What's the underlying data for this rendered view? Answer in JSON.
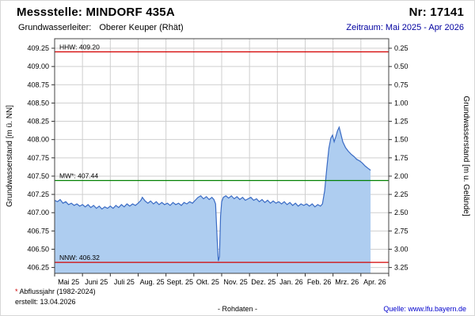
{
  "header": {
    "station_label": "Messstelle: MINDORF 435A",
    "number_label": "Nr: 17141",
    "aquifer_label": "Grundwasserleiter:",
    "aquifer_value": "Oberer Keuper (Rhät)",
    "period_label": "Zeitraum: Mai 2025 - Apr 2026"
  },
  "footer": {
    "note_asterisk": "*",
    "note_text": "Abflussjahr (1982-2024)",
    "created_label": "erstellt: 13.04.2026",
    "center_label": "- Rohdaten -",
    "source_label": "Quelle:",
    "source_link": "www.lfu.bayern.de"
  },
  "chart_data": {
    "type": "area",
    "title": "",
    "ylabel_left": "Grundwasserstand [m ü. NN]",
    "ylabel_right": "Grundwasserstand [m u. Gelände]",
    "ylim_left": [
      406.17,
      409.38
    ],
    "ground_level": 409.5,
    "grid": true,
    "yticks_left": [
      "409.25",
      "409.00",
      "408.75",
      "408.50",
      "408.25",
      "408.00",
      "407.75",
      "407.50",
      "407.25",
      "407.00",
      "406.75",
      "406.50",
      "406.25"
    ],
    "yticks_right": [
      "0.25",
      "0.50",
      "0.75",
      "1.00",
      "1.25",
      "1.50",
      "1.75",
      "2.00",
      "2.25",
      "2.50",
      "2.75",
      "3.00",
      "3.25"
    ],
    "xticks": [
      "Mai 25",
      "Juni 25",
      "Juli 25",
      "Aug. 25",
      "Sept. 25",
      "Okt. 25",
      "Nov. 25",
      "Dez. 25",
      "Jan. 26",
      "Feb. 26",
      "Mrz. 26",
      "Apr. 26"
    ],
    "ref_lines": [
      {
        "name": "HHW",
        "label": "HHW: 409.20",
        "value": 409.2,
        "color": "#d40000"
      },
      {
        "name": "MW",
        "label": "MW*: 407.44",
        "value": 407.44,
        "color": "#008000"
      },
      {
        "name": "NNW",
        "label": "NNW: 406.32",
        "value": 406.32,
        "color": "#d40000"
      }
    ],
    "series": [
      {
        "name": "Grundwasserstand Rohdaten",
        "color": "#3a6bc4",
        "fill": "#aecdf0",
        "points": [
          [
            0.0,
            407.17
          ],
          [
            0.1,
            407.15
          ],
          [
            0.2,
            407.18
          ],
          [
            0.3,
            407.13
          ],
          [
            0.4,
            407.15
          ],
          [
            0.5,
            407.11
          ],
          [
            0.6,
            407.13
          ],
          [
            0.7,
            407.1
          ],
          [
            0.8,
            407.12
          ],
          [
            0.9,
            407.09
          ],
          [
            1.0,
            407.11
          ],
          [
            1.1,
            407.08
          ],
          [
            1.2,
            407.11
          ],
          [
            1.3,
            407.07
          ],
          [
            1.4,
            407.1
          ],
          [
            1.5,
            407.06
          ],
          [
            1.6,
            407.09
          ],
          [
            1.7,
            407.05
          ],
          [
            1.8,
            407.08
          ],
          [
            1.9,
            407.06
          ],
          [
            2.0,
            407.09
          ],
          [
            2.1,
            407.06
          ],
          [
            2.2,
            407.1
          ],
          [
            2.3,
            407.07
          ],
          [
            2.4,
            407.11
          ],
          [
            2.5,
            407.08
          ],
          [
            2.6,
            407.12
          ],
          [
            2.7,
            407.09
          ],
          [
            2.8,
            407.12
          ],
          [
            2.9,
            407.1
          ],
          [
            3.0,
            407.13
          ],
          [
            3.1,
            407.17
          ],
          [
            3.15,
            407.21
          ],
          [
            3.25,
            407.16
          ],
          [
            3.35,
            407.13
          ],
          [
            3.45,
            407.16
          ],
          [
            3.55,
            407.12
          ],
          [
            3.65,
            407.15
          ],
          [
            3.75,
            407.11
          ],
          [
            3.85,
            407.14
          ],
          [
            3.95,
            407.11
          ],
          [
            4.05,
            407.13
          ],
          [
            4.15,
            407.1
          ],
          [
            4.25,
            407.14
          ],
          [
            4.35,
            407.11
          ],
          [
            4.45,
            407.13
          ],
          [
            4.55,
            407.1
          ],
          [
            4.65,
            407.14
          ],
          [
            4.75,
            407.12
          ],
          [
            4.85,
            407.15
          ],
          [
            4.95,
            407.13
          ],
          [
            5.05,
            407.17
          ],
          [
            5.15,
            407.21
          ],
          [
            5.25,
            407.23
          ],
          [
            5.35,
            407.19
          ],
          [
            5.45,
            407.22
          ],
          [
            5.55,
            407.18
          ],
          [
            5.65,
            407.21
          ],
          [
            5.72,
            407.18
          ],
          [
            5.78,
            407.12
          ],
          [
            5.84,
            406.62
          ],
          [
            5.88,
            406.34
          ],
          [
            5.92,
            406.4
          ],
          [
            5.96,
            406.95
          ],
          [
            6.0,
            407.15
          ],
          [
            6.06,
            407.21
          ],
          [
            6.15,
            407.23
          ],
          [
            6.25,
            407.2
          ],
          [
            6.35,
            407.23
          ],
          [
            6.45,
            407.19
          ],
          [
            6.55,
            407.22
          ],
          [
            6.65,
            407.18
          ],
          [
            6.75,
            407.21
          ],
          [
            6.85,
            407.17
          ],
          [
            6.95,
            407.19
          ],
          [
            7.05,
            407.21
          ],
          [
            7.15,
            407.17
          ],
          [
            7.25,
            407.19
          ],
          [
            7.35,
            407.15
          ],
          [
            7.45,
            407.18
          ],
          [
            7.55,
            407.14
          ],
          [
            7.65,
            407.17
          ],
          [
            7.75,
            407.13
          ],
          [
            7.85,
            407.16
          ],
          [
            7.95,
            407.13
          ],
          [
            8.05,
            407.15
          ],
          [
            8.15,
            407.12
          ],
          [
            8.25,
            407.15
          ],
          [
            8.35,
            407.11
          ],
          [
            8.45,
            407.14
          ],
          [
            8.55,
            407.1
          ],
          [
            8.65,
            407.13
          ],
          [
            8.75,
            407.09
          ],
          [
            8.85,
            407.12
          ],
          [
            8.95,
            407.1
          ],
          [
            9.05,
            407.12
          ],
          [
            9.15,
            407.09
          ],
          [
            9.25,
            407.12
          ],
          [
            9.35,
            407.08
          ],
          [
            9.45,
            407.11
          ],
          [
            9.55,
            407.09
          ],
          [
            9.62,
            407.12
          ],
          [
            9.7,
            407.3
          ],
          [
            9.78,
            407.62
          ],
          [
            9.85,
            407.88
          ],
          [
            9.92,
            408.02
          ],
          [
            9.98,
            408.06
          ],
          [
            10.04,
            407.97
          ],
          [
            10.1,
            408.04
          ],
          [
            10.16,
            408.12
          ],
          [
            10.22,
            408.17
          ],
          [
            10.28,
            408.08
          ],
          [
            10.35,
            407.97
          ],
          [
            10.45,
            407.89
          ],
          [
            10.55,
            407.84
          ],
          [
            10.65,
            407.8
          ],
          [
            10.75,
            407.77
          ],
          [
            10.85,
            407.73
          ],
          [
            10.95,
            407.71
          ],
          [
            11.05,
            407.68
          ],
          [
            11.15,
            407.64
          ],
          [
            11.25,
            407.61
          ],
          [
            11.35,
            407.58
          ]
        ]
      }
    ],
    "colors": {
      "gridline": "#cfcfcf",
      "plot_border": "#444444",
      "tick": "#333333"
    }
  }
}
